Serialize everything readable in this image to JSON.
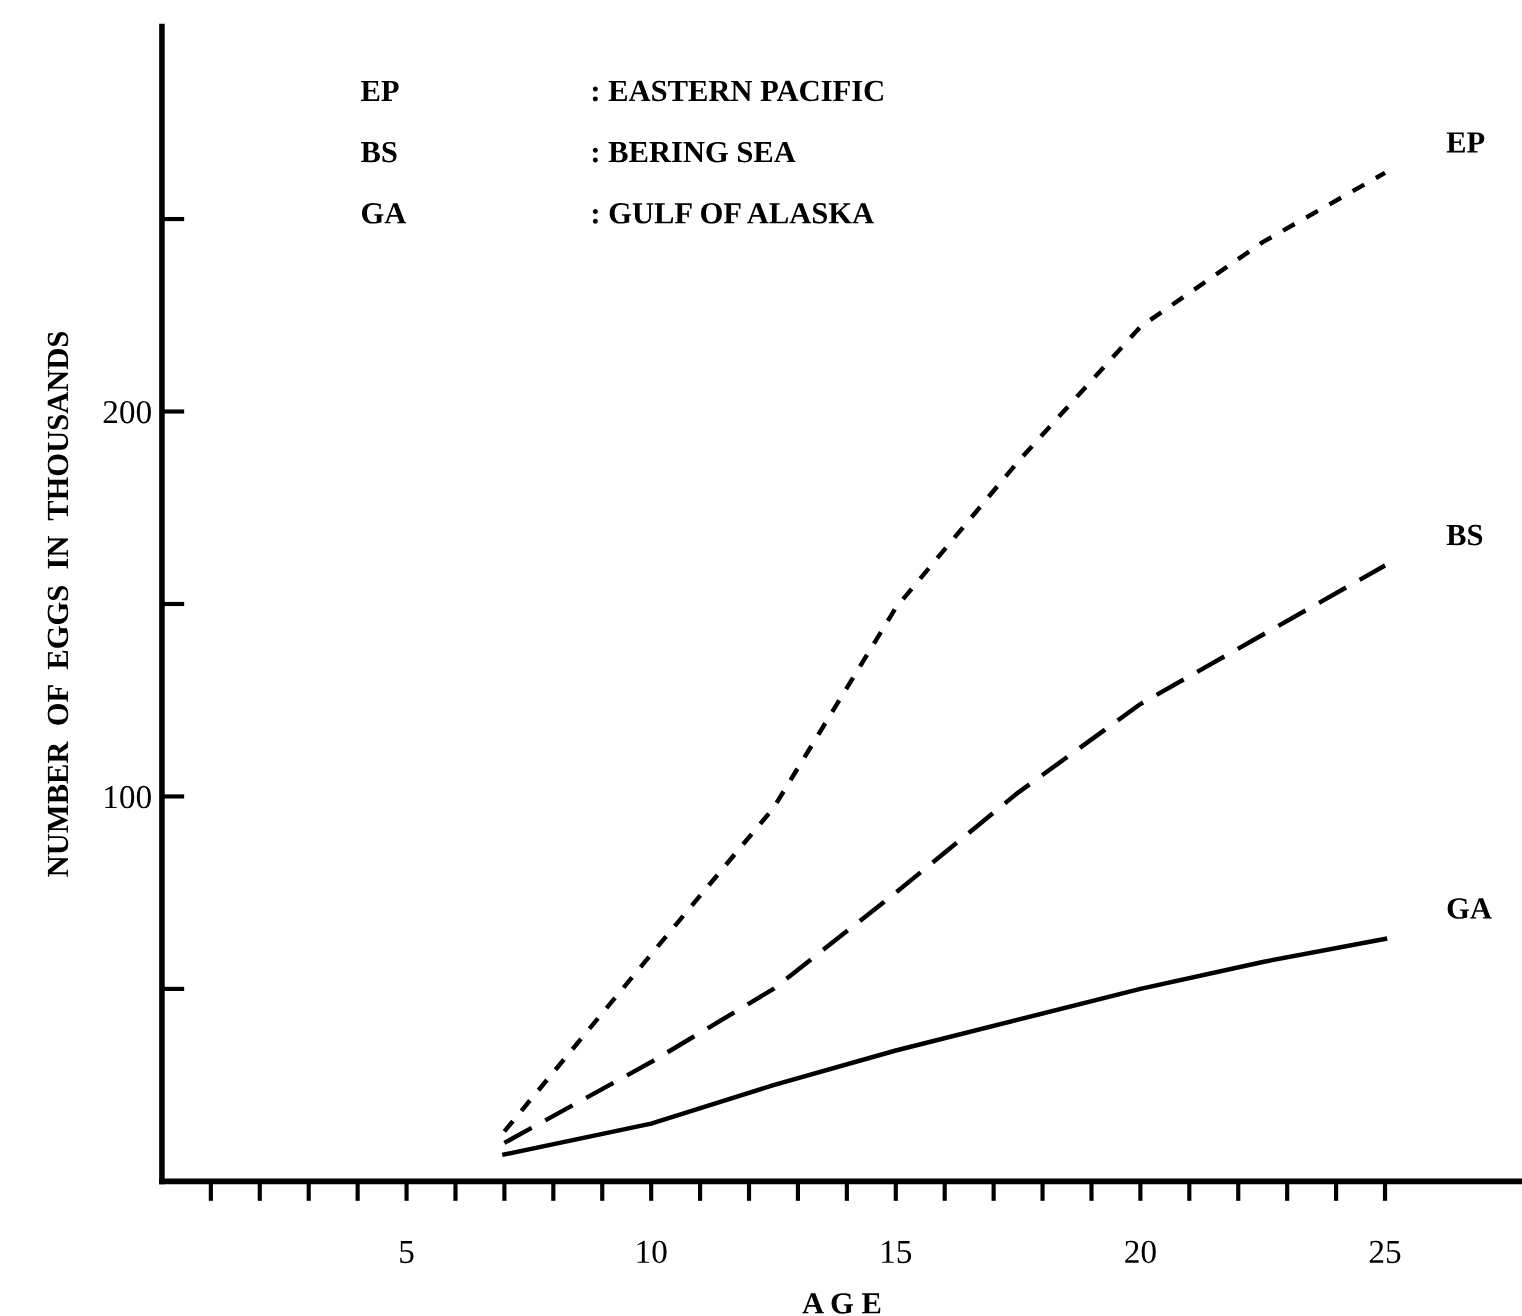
{
  "chart_data": {
    "type": "line",
    "xlabel": "A G E",
    "ylabel": "NUMBER  OF  EGGS  IN  THOUSANDS",
    "xlim": [
      0,
      27.8
    ],
    "ylim": [
      0,
      300
    ],
    "xticks": [
      {
        "value": 1,
        "label": null
      },
      {
        "value": 2,
        "label": null
      },
      {
        "value": 3,
        "label": null
      },
      {
        "value": 4,
        "label": null
      },
      5,
      {
        "value": 6,
        "label": null
      },
      {
        "value": 7,
        "label": null
      },
      {
        "value": 8,
        "label": null
      },
      {
        "value": 9,
        "label": null
      },
      10,
      {
        "value": 11,
        "label": null
      },
      {
        "value": 12,
        "label": null
      },
      {
        "value": 13,
        "label": null
      },
      {
        "value": 14,
        "label": null
      },
      15,
      {
        "value": 16,
        "label": null
      },
      {
        "value": 17,
        "label": null
      },
      {
        "value": 18,
        "label": null
      },
      {
        "value": 19,
        "label": null
      },
      20,
      {
        "value": 21,
        "label": null
      },
      {
        "value": 22,
        "label": null
      },
      {
        "value": 23,
        "label": null
      },
      {
        "value": 24,
        "label": null
      },
      25
    ],
    "yticks": [
      {
        "value": 50,
        "label": null
      },
      100,
      {
        "value": 150,
        "label": null
      },
      200,
      {
        "value": 250,
        "label": null
      }
    ],
    "grid": false,
    "legend": false,
    "marker": "none",
    "x": [
      7,
      10,
      12.5,
      15,
      17.5,
      20,
      22.5,
      25
    ],
    "series": [
      {
        "name": "EP",
        "color": "#000000",
        "line_style": "dotted",
        "values": [
          13,
          59,
          97,
          149,
          187,
          222,
          244,
          262
        ]
      },
      {
        "name": "BS",
        "color": "#000000",
        "line_style": "dashed",
        "values": [
          10,
          31,
          50,
          75,
          101,
          124,
          142,
          160
        ]
      },
      {
        "name": "GA",
        "color": "#000000",
        "line_style": "solid",
        "values": [
          7,
          15,
          25,
          34,
          42,
          50,
          57,
          63
        ]
      }
    ],
    "annotations": [
      "EP",
      ": EASTERN PACIFIC",
      "BS",
      ": BERING SEA",
      "GA",
      ": GULF OF ALASKA"
    ]
  }
}
